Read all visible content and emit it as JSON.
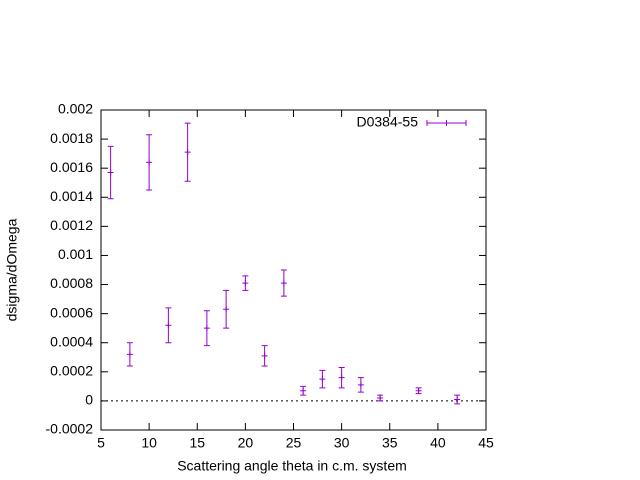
{
  "chart_data": {
    "type": "errorbar",
    "xlabel": "Scattering angle theta in c.m. system",
    "ylabel": "dsigma/dOmega",
    "xlim": [
      5,
      45
    ],
    "xticks": [
      5,
      10,
      15,
      20,
      25,
      30,
      35,
      40,
      45
    ],
    "ylim": [
      -0.0002,
      0.002
    ],
    "yticks": [
      -0.0002,
      0,
      0.0002,
      0.0004,
      0.0006,
      0.0008,
      0.001,
      0.0012,
      0.0014,
      0.0016,
      0.0018,
      0.002
    ],
    "zero_line": true,
    "legend": "top-right",
    "series": [
      {
        "name": "D0384-55",
        "color": "#9400d3",
        "x": [
          6,
          8,
          10,
          12,
          14,
          16,
          18,
          20,
          22,
          24,
          26,
          28,
          30,
          32,
          34,
          38,
          42
        ],
        "values": [
          0.00157,
          0.00032,
          0.00164,
          0.00052,
          0.00171,
          0.0005,
          0.00063,
          0.00081,
          0.00031,
          0.00081,
          7e-05,
          0.00015,
          0.00016,
          0.00011,
          2e-05,
          7e-05,
          1e-05
        ],
        "errors": [
          0.00018,
          8e-05,
          0.00019,
          0.00012,
          0.0002,
          0.00012,
          0.00013,
          5e-05,
          7e-05,
          9e-05,
          3e-05,
          6e-05,
          7e-05,
          5e-05,
          2e-05,
          2e-05,
          3e-05
        ]
      }
    ]
  }
}
